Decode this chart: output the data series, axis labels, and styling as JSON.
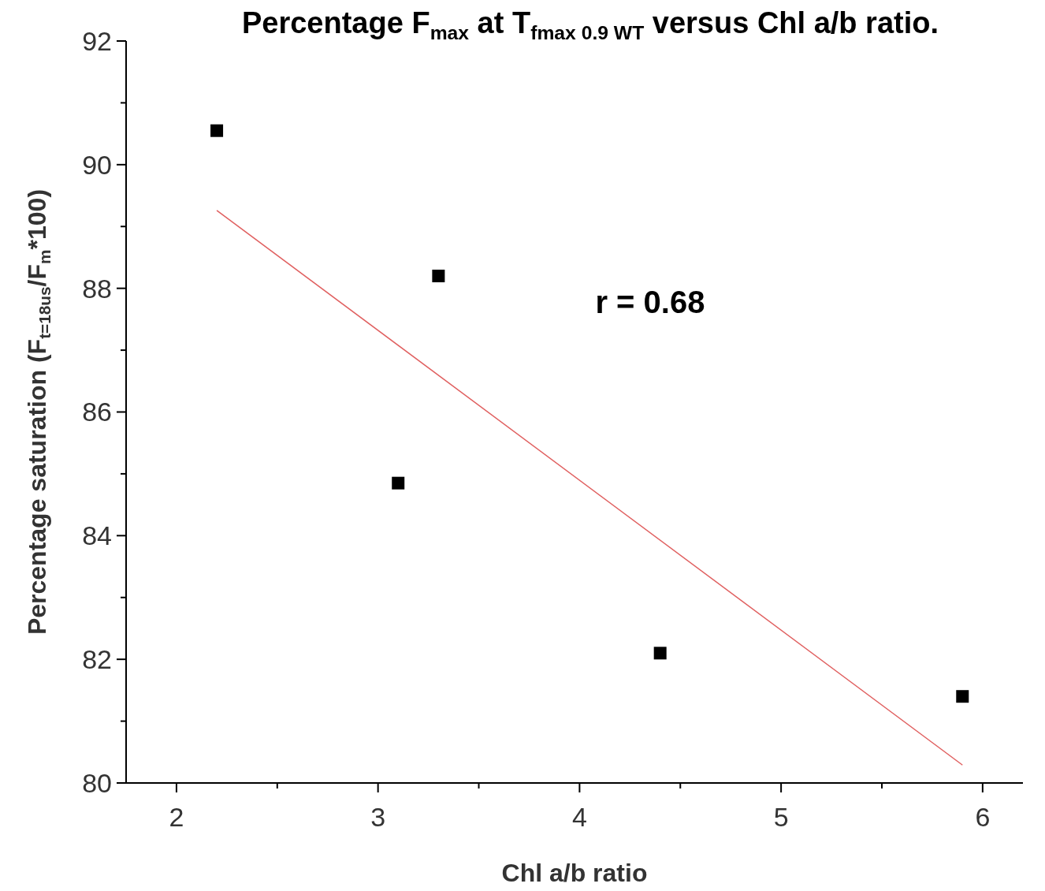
{
  "chart_data": {
    "type": "scatter",
    "title": "Percentage F$_{max}$ at T$_{fmax 0.9 WT}$ versus Chl a/b ratio.",
    "xlabel": "Chl a/b ratio",
    "ylabel": "Percentage saturation (F$_{t=18us}$/F$_{m}$*100)",
    "annotations": [
      "r = 0.68"
    ],
    "marker": "square",
    "grid": false,
    "xlim": [
      1.75,
      6.2
    ],
    "ylim": [
      80,
      92
    ],
    "xticks": [
      2,
      {
        "value": 2.5,
        "label": null
      },
      3,
      {
        "value": 3.5,
        "label": null
      },
      4,
      {
        "value": 4.5,
        "label": null
      },
      5,
      {
        "value": 5.5,
        "label": null
      },
      6
    ],
    "yticks": [
      80,
      {
        "value": 81,
        "label": null
      },
      82,
      {
        "value": 83,
        "label": null
      },
      84,
      {
        "value": 85,
        "label": null
      },
      86,
      {
        "value": 87,
        "label": null
      },
      88,
      {
        "value": 89,
        "label": null
      },
      90,
      {
        "value": 91,
        "label": null
      },
      92
    ],
    "series": [
      {
        "color": "#000000",
        "x": [
          2.2,
          3.3,
          3.1,
          4.4,
          5.9
        ],
        "values": [
          90.55,
          88.2,
          84.85,
          82.1,
          81.4
        ]
      },
      {
        "type": "line",
        "color": "#e06060",
        "x": [
          2.2,
          5.9
        ],
        "values": [
          89.26,
          80.29
        ],
        "marker": "none"
      }
    ]
  }
}
